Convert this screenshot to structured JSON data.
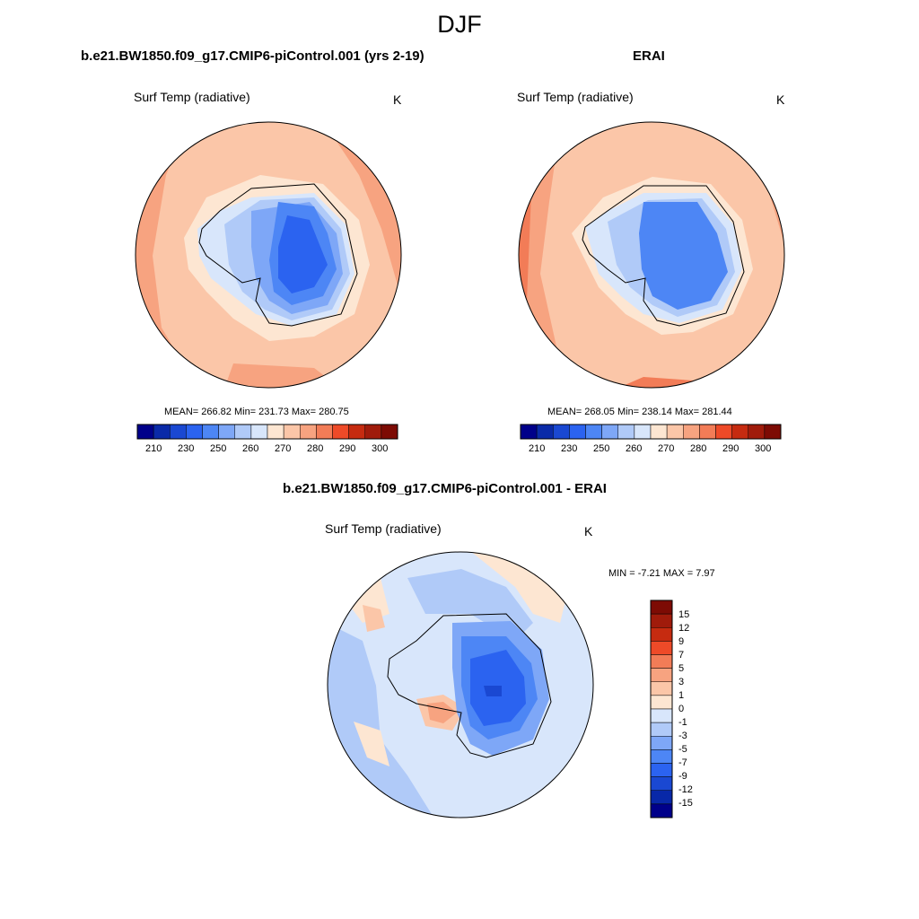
{
  "title": "DJF",
  "palettes": {
    "abs": [
      "#00008a",
      "#0a2aa8",
      "#1a48d2",
      "#2b63f0",
      "#4d86f5",
      "#7ea7f7",
      "#b0caf8",
      "#d8e6fb",
      "#fde6d2",
      "#fbc6a8",
      "#f7a380",
      "#f27c57",
      "#ee4a28",
      "#c62b10",
      "#a01b0b",
      "#7d0b04"
    ],
    "diff": [
      "#00008a",
      "#0828a8",
      "#1a48d2",
      "#2b63f0",
      "#4d86f5",
      "#7ea7f7",
      "#b0caf8",
      "#d8e6fb",
      "#fde6d2",
      "#fbc6a8",
      "#f7a380",
      "#f27c57",
      "#ee4a28",
      "#c62b10",
      "#a01b0b",
      "#7d0b04"
    ]
  },
  "panels": [
    {
      "title": "b.e21.BW1850.f09_g17.CMIP6-piControl.001 (yrs 2-19)",
      "variable": "Surf Temp (radiative)",
      "units": "K",
      "stats": "MEAN= 266.82  Min= 231.73  Max= 280.75",
      "colorbar_labels": [
        "210",
        "230",
        "250",
        "260",
        "270",
        "280",
        "290",
        "300"
      ]
    },
    {
      "title": "ERAI",
      "variable": "Surf Temp (radiative)",
      "units": "K",
      "stats": "MEAN= 268.05  Min= 238.14  Max= 281.44",
      "colorbar_labels": [
        "210",
        "230",
        "250",
        "260",
        "270",
        "280",
        "290",
        "300"
      ]
    },
    {
      "title": "b.e21.BW1850.f09_g17.CMIP6-piControl.001 - ERAI",
      "variable": "Surf Temp (radiative)",
      "units": "K",
      "stats": "MIN =  -7.21 MAX =   7.97",
      "colorbar_labels": [
        "15",
        "12",
        "9",
        "7",
        "5",
        "3",
        "1",
        "0",
        "-1",
        "-3",
        "-5",
        "-7",
        "-9",
        "-12",
        "-15"
      ]
    }
  ]
}
